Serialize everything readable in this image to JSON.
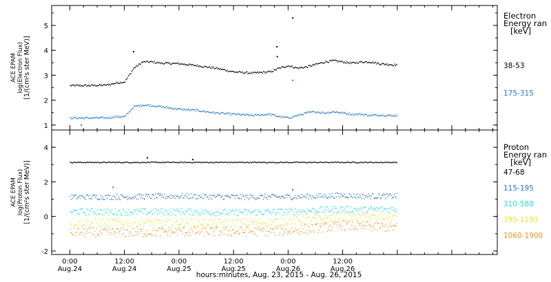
{
  "chart_data": [
    {
      "type": "scatter",
      "panel": "electron",
      "ylabel_lines": [
        "ACE EPAM",
        "log(Electron Flux)",
        "[1/(cm²s ster MeV)]"
      ],
      "ylim": [
        0.8,
        5.8
      ],
      "yticks": [
        "1",
        "2",
        "3",
        "4",
        "5"
      ],
      "legend_title": [
        "Electron",
        "Energy ran",
        "[keV]"
      ],
      "series": [
        {
          "name": "38-53",
          "color": "#000000",
          "x": [
            0,
            4,
            8,
            10,
            12,
            14,
            16,
            18,
            20,
            24,
            28,
            32,
            36,
            40,
            44,
            46,
            48,
            50,
            52,
            54,
            56,
            58,
            60,
            62,
            64,
            66,
            68,
            70,
            72
          ],
          "y": [
            2.6,
            2.6,
            2.62,
            2.7,
            2.75,
            3.3,
            3.55,
            3.55,
            3.5,
            3.48,
            3.4,
            3.3,
            3.15,
            3.1,
            3.15,
            3.3,
            3.4,
            3.3,
            3.35,
            3.45,
            3.55,
            3.6,
            3.55,
            3.5,
            3.55,
            3.55,
            3.48,
            3.45,
            3.42
          ],
          "outliers": [
            [
              14,
              3.95
            ],
            [
              45.5,
              4.15
            ],
            [
              45.6,
              3.75
            ],
            [
              49,
              5.3
            ]
          ]
        },
        {
          "name": "175-315",
          "color": "#1f78c8",
          "x": [
            0,
            4,
            8,
            10,
            12,
            14,
            16,
            18,
            20,
            24,
            28,
            32,
            36,
            40,
            44,
            46,
            48,
            50,
            52,
            54,
            56,
            58,
            60,
            62,
            64,
            66,
            68,
            70,
            72
          ],
          "y": [
            1.3,
            1.3,
            1.3,
            1.35,
            1.35,
            1.75,
            1.82,
            1.8,
            1.75,
            1.65,
            1.6,
            1.5,
            1.45,
            1.4,
            1.45,
            1.35,
            1.3,
            1.4,
            1.5,
            1.55,
            1.5,
            1.55,
            1.5,
            1.45,
            1.45,
            1.4,
            1.42,
            1.4,
            1.4
          ],
          "outliers": [
            [
              49,
              2.8
            ],
            [
              2.5,
              1.0
            ]
          ]
        }
      ]
    },
    {
      "type": "scatter",
      "panel": "proton",
      "ylabel_lines": [
        "ACE EPAM",
        "log(Proton Flux)",
        "[1/(cm²s ster MeV)]"
      ],
      "ylim": [
        -2.2,
        5.0
      ],
      "yticks": [
        "-2",
        "0",
        "2",
        "4"
      ],
      "legend_title": [
        "Proton",
        "Energy ran",
        "[keV]"
      ],
      "series": [
        {
          "name": "47-68",
          "color": "#000000",
          "x": [
            0,
            72
          ],
          "y": [
            3.15,
            3.15
          ],
          "outliers": [
            [
              17,
              3.4
            ],
            [
              27,
              3.3
            ]
          ]
        },
        {
          "name": "115-195",
          "color": "#1f78c8",
          "x": [
            0,
            12,
            24,
            36,
            48,
            56,
            60,
            64,
            72
          ],
          "y": [
            1.15,
            1.15,
            1.2,
            1.15,
            1.15,
            1.2,
            1.25,
            1.2,
            1.2
          ],
          "outliers": [
            [
              9.5,
              1.7
            ],
            [
              49,
              1.55
            ]
          ]
        },
        {
          "name": "310-580",
          "color": "#22d8d8",
          "x": [
            0,
            12,
            24,
            36,
            48,
            56,
            60,
            64,
            72
          ],
          "y": [
            0.3,
            0.28,
            0.3,
            0.25,
            0.3,
            0.4,
            0.45,
            0.42,
            0.45
          ],
          "outliers": []
        },
        {
          "name": "795-1193",
          "color": "#e6e62a",
          "x": [
            0,
            12,
            24,
            36,
            48,
            56,
            60,
            64,
            72
          ],
          "y": [
            -0.3,
            -0.32,
            -0.3,
            -0.35,
            -0.25,
            -0.1,
            0.0,
            -0.05,
            0.0
          ],
          "outliers": []
        },
        {
          "name": "1060-1900",
          "color": "#f0901e",
          "x": [
            0,
            12,
            24,
            36,
            48,
            56,
            60,
            64,
            72
          ],
          "y": [
            -0.9,
            -0.9,
            -0.85,
            -0.85,
            -0.8,
            -0.6,
            -0.5,
            -0.55,
            -0.6
          ],
          "outliers": []
        }
      ]
    }
  ],
  "x_axis": {
    "xlim": [
      -4,
      94
    ],
    "ticks": [
      {
        "x": 0,
        "label": "0:00",
        "date": "Aug.24"
      },
      {
        "x": 12,
        "label": "12:00",
        "date": "Aug.24"
      },
      {
        "x": 24,
        "label": "0:00",
        "date": "Aug.25"
      },
      {
        "x": 36,
        "label": "12:00",
        "date": "Aug.25"
      },
      {
        "x": 48,
        "label": "0:00",
        "date": "Aug.26"
      },
      {
        "x": 60,
        "label": "12:00",
        "date": "Aug.26"
      }
    ],
    "minor_step": 3,
    "xlabel": "hours:minutes, Aug. 23, 2015 - Aug. 26, 2015"
  }
}
